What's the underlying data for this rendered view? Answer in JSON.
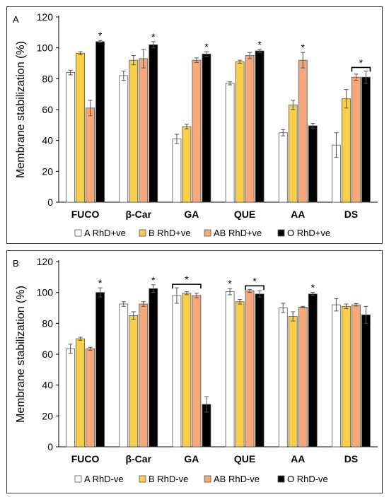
{
  "chart_data": [
    {
      "type": "bar",
      "panel_label": "A",
      "ylabel": "Membrane stabilization (%)",
      "ylim": [
        0,
        120
      ],
      "yticks": [
        0,
        20,
        40,
        60,
        80,
        100,
        120
      ],
      "categories": [
        "FUCO",
        "β-Car",
        "GA",
        "QUE",
        "AA",
        "DS"
      ],
      "series": [
        {
          "name": "A RhD+ve",
          "color": "#ffffff",
          "values": [
            84,
            82,
            41,
            77,
            45,
            37
          ],
          "errors": [
            1.5,
            3,
            3,
            1,
            2,
            8
          ]
        },
        {
          "name": "B RhD+ve",
          "color": "#f7cf4a",
          "values": [
            96.5,
            92,
            49,
            91,
            63,
            67
          ],
          "errors": [
            1,
            3,
            1.5,
            1,
            3,
            6
          ]
        },
        {
          "name": "AB RhD+ve",
          "color": "#f6a87b",
          "values": [
            61,
            93,
            92,
            95,
            92,
            81
          ],
          "errors": [
            5,
            6,
            1.5,
            2,
            5,
            2
          ]
        },
        {
          "name": "O RhD+ve",
          "color": "#000000",
          "values": [
            104,
            102,
            96,
            98,
            49.5,
            81
          ],
          "errors": [
            0.8,
            2,
            1.5,
            1,
            1.5,
            4
          ]
        }
      ],
      "significance": [
        {
          "category": "FUCO",
          "series": 3,
          "label": "*"
        },
        {
          "category": "β-Car",
          "series": 3,
          "label": "*"
        },
        {
          "category": "GA",
          "series": 3,
          "label": "*"
        },
        {
          "category": "QUE",
          "series": 3,
          "label": "*"
        },
        {
          "category": "AA",
          "series": 2,
          "label": "*"
        },
        {
          "category": "DS",
          "series_span": [
            2,
            3
          ],
          "label": "*",
          "bracket": true
        }
      ],
      "grid": false,
      "legend_position": "bottom"
    },
    {
      "type": "bar",
      "panel_label": "B",
      "ylabel": "Membrane stabilization (%)",
      "ylim": [
        0,
        120
      ],
      "yticks": [
        0,
        20,
        40,
        60,
        80,
        100,
        120
      ],
      "categories": [
        "FUCO",
        "β-Car",
        "GA",
        "QUE",
        "AA",
        "DS"
      ],
      "series": [
        {
          "name": "A RhD-ve",
          "color": "#ffffff",
          "values": [
            63.5,
            92.5,
            98,
            100.5,
            90,
            92
          ],
          "errors": [
            3,
            1.5,
            5,
            2,
            3,
            4
          ]
        },
        {
          "name": "B RhD-ve",
          "color": "#f7cf4a",
          "values": [
            70,
            85,
            99.5,
            94,
            84.5,
            91
          ],
          "errors": [
            1,
            2.5,
            1,
            1.5,
            3,
            1.5
          ]
        },
        {
          "name": "AB RhD-ve",
          "color": "#f6a87b",
          "values": [
            63.5,
            92.5,
            98,
            101,
            90.5,
            92
          ],
          "errors": [
            1,
            1.5,
            1.5,
            1,
            0.5,
            0.8
          ]
        },
        {
          "name": "O RhD-ve",
          "color": "#000000",
          "values": [
            100,
            102.5,
            27.5,
            99,
            99,
            85.5
          ],
          "errors": [
            3,
            2.5,
            5,
            2,
            1,
            5.5
          ]
        }
      ],
      "significance": [
        {
          "category": "FUCO",
          "series": 3,
          "label": "*"
        },
        {
          "category": "β-Car",
          "series": 3,
          "label": "*"
        },
        {
          "category": "GA",
          "series_span": [
            0,
            2
          ],
          "label": "*",
          "bracket": true
        },
        {
          "category": "QUE",
          "series": 0,
          "label": "*"
        },
        {
          "category": "QUE",
          "series_span": [
            2,
            3
          ],
          "label": "*",
          "bracket": true
        },
        {
          "category": "AA",
          "series": 3,
          "label": "*"
        }
      ],
      "grid": false,
      "legend_position": "bottom"
    }
  ]
}
